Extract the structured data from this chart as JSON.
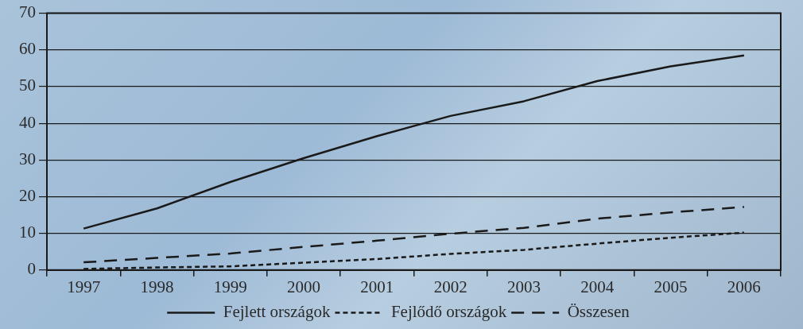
{
  "chart_data": {
    "type": "line",
    "categories": [
      "1997",
      "1998",
      "1999",
      "2000",
      "2001",
      "2002",
      "2003",
      "2004",
      "2005",
      "2006"
    ],
    "series": [
      {
        "name": "Fejlett országok",
        "color": "#1a1a1a",
        "line_style": "solid",
        "values": [
          11.3,
          16.8,
          24,
          30.5,
          36.5,
          42,
          46,
          51.5,
          55.5,
          58.5
        ]
      },
      {
        "name": "Fejlődő országok",
        "color": "#1a1a1a",
        "line_style": "dotted",
        "values": [
          0.3,
          0.7,
          1,
          2,
          3,
          4.4,
          5.5,
          7.2,
          8.8,
          10.2
        ]
      },
      {
        "name": "Összesen",
        "color": "#1a1a1a",
        "line_style": "dashed",
        "values": [
          2.1,
          3.3,
          4.5,
          6.3,
          8,
          9.9,
          11.5,
          14,
          15.7,
          17.2
        ]
      }
    ],
    "ylim": [
      0,
      70
    ],
    "yticks": [
      0,
      10,
      20,
      30,
      40,
      50,
      60,
      70
    ],
    "grid": "y",
    "legend": "bottom",
    "marker": "none"
  }
}
